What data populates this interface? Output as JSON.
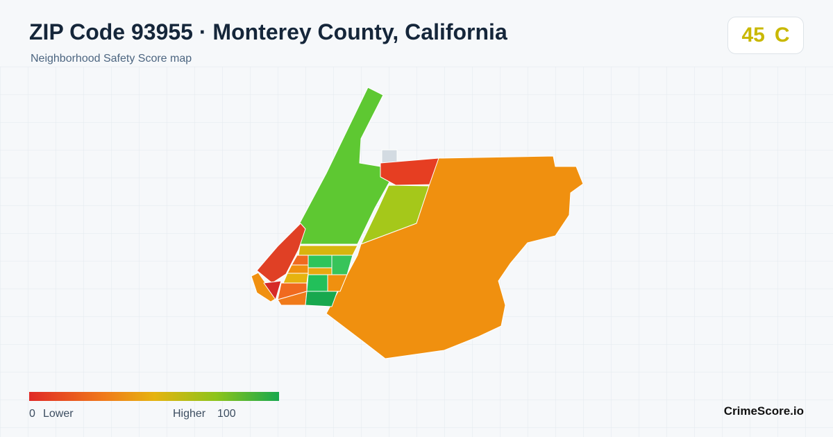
{
  "header": {
    "title": "ZIP Code 93955 · Monterey County, California",
    "subtitle": "Neighborhood Safety Score map"
  },
  "score": {
    "value": 45,
    "grade": "C"
  },
  "legend": {
    "min": 0,
    "min_label": "Lower",
    "max_label": "Higher",
    "max": 100
  },
  "footer": {
    "brand": "CrimeScore.io"
  }
}
